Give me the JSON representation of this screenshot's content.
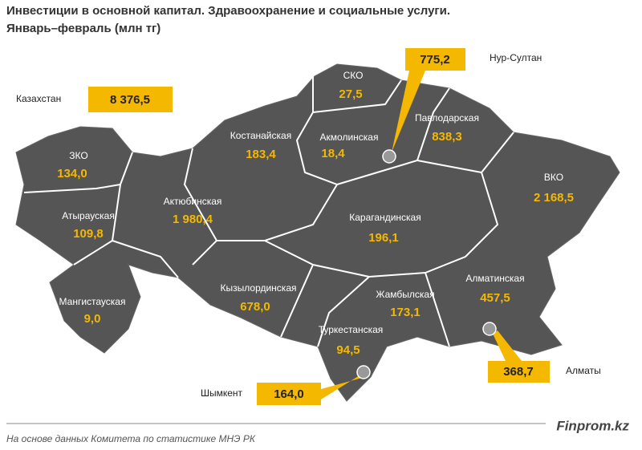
{
  "header": {
    "title": "Инвестиции  в основной капитал. Здравоохранение и социальные  услуги.",
    "subtitle": "Январь–февраль (млн  тг)"
  },
  "total": {
    "label": "Казахстан",
    "value": "8 376,5"
  },
  "regions": [
    {
      "name": "СКО",
      "value": "27,5"
    },
    {
      "name": "Костанайская",
      "value": "183,4"
    },
    {
      "name": "Акмолинская",
      "value": "18,4"
    },
    {
      "name": "Павлодарская",
      "value": "838,3"
    },
    {
      "name": "ЗКО",
      "value": "134,0"
    },
    {
      "name": "ВКО",
      "value": "2 168,5"
    },
    {
      "name": "Актюбинская",
      "value": "1 980,4"
    },
    {
      "name": "Атырауская",
      "value": "109,8"
    },
    {
      "name": "Карагандинская",
      "value": "196,1"
    },
    {
      "name": "Кызылординская",
      "value": "678,0"
    },
    {
      "name": "Жамбылская",
      "value": "173,1"
    },
    {
      "name": "Алматинская",
      "value": "457,5"
    },
    {
      "name": "Мангистауская",
      "value": "9,0"
    },
    {
      "name": "Туркестанская",
      "value": "94,5"
    }
  ],
  "cities": [
    {
      "name": "Нур-Султан",
      "value": "775,2"
    },
    {
      "name": "Алматы",
      "value": "368,7"
    },
    {
      "name": "Шымкент",
      "value": "164,0"
    }
  ],
  "footer": {
    "source": "На основе данных  Комитета по статистике МНЭ РК",
    "brand": "Finprom.kz"
  }
}
